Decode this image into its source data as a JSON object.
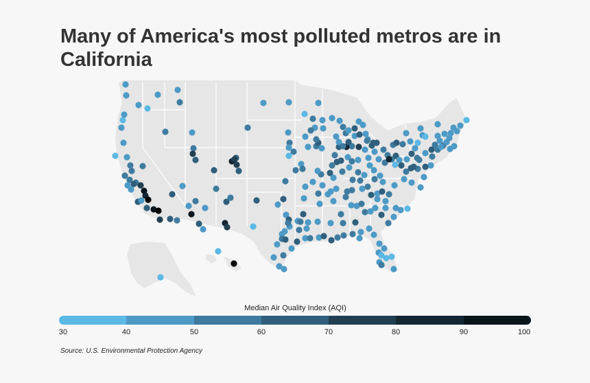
{
  "title": "Many of America's most polluted metros are in California",
  "legend": {
    "title": "Median Air Quality Index (AQI)",
    "ticks": [
      "30",
      "40",
      "50",
      "60",
      "70",
      "80",
      "90",
      "100"
    ],
    "colors": [
      "#5cb8e4",
      "#4d9ac6",
      "#3f7b9f",
      "#2f5f7c",
      "#223f52",
      "#142634",
      "#0a141b",
      "#000000"
    ]
  },
  "source": "Source: U.S. Environmental Protection Agency",
  "colors": {
    "background": "#f7f7f7",
    "land": "#e6e6e6",
    "borders": "#ffffff"
  }
}
